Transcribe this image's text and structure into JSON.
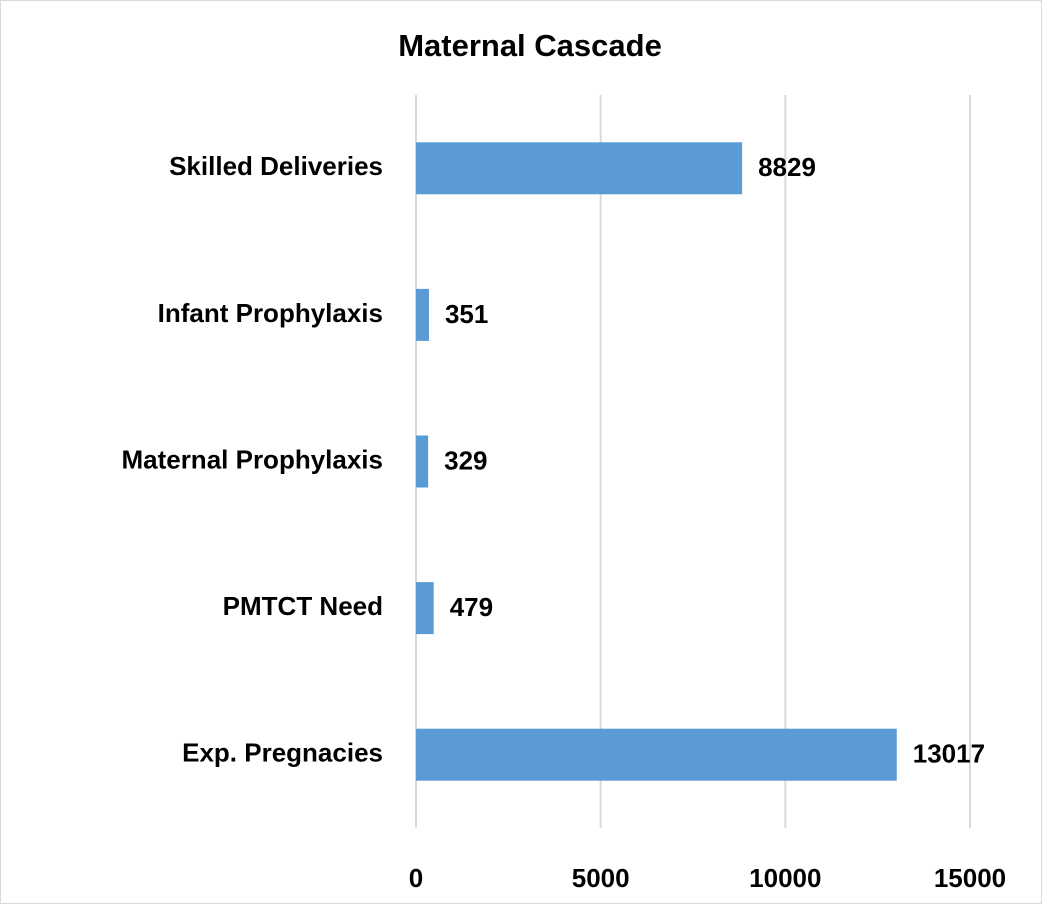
{
  "chart_data": {
    "type": "bar",
    "orientation": "horizontal",
    "title": "Maternal Cascade",
    "categories": [
      "Skilled Deliveries",
      "Infant Prophylaxis",
      "Maternal Prophylaxis",
      "PMTCT Need",
      "Exp. Pregnacies"
    ],
    "values": [
      8829,
      351,
      329,
      479,
      13017
    ],
    "color": "#5b9bd5",
    "xlim": [
      0,
      15000
    ],
    "xticks": [
      0,
      5000,
      10000,
      15000
    ],
    "grid": true
  }
}
